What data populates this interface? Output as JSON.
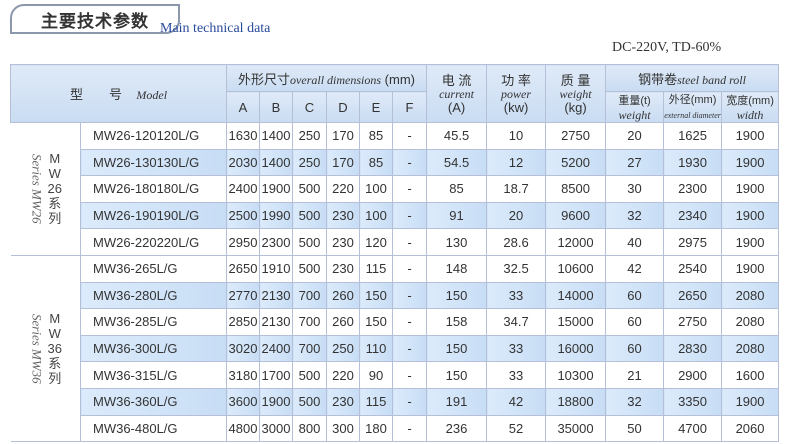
{
  "title": "主要技术参数",
  "subtitle": "Main technical data",
  "conditions": "DC-220V, TD-60%",
  "header": {
    "model_cn": "型　　号",
    "model_en": "Model",
    "dims_cn": "外形尺寸",
    "dims_en": "overall dimensions",
    "dims_unit": "(mm)",
    "dim_cols": [
      "A",
      "B",
      "C",
      "D",
      "E",
      "F"
    ],
    "current_cn": "电 流",
    "current_en": "current",
    "current_unit": "(A)",
    "power_cn": "功 率",
    "power_en": "power",
    "power_unit": "(kw)",
    "weight_cn": "质 量",
    "weight_en": "weight",
    "weight_unit": "(kg)",
    "roll_cn": "钢带卷",
    "roll_en": "steel band roll",
    "roll_weight_cn": "重量(t)",
    "roll_weight_en": "weight",
    "roll_ext_cn": "外径(mm)",
    "roll_ext_en": "external diameter",
    "roll_width_cn": "宽度(mm)",
    "roll_width_en": "width"
  },
  "series": [
    {
      "label_en": "Series MW26",
      "label_cn": [
        "M",
        "W",
        "26",
        "系",
        "列"
      ],
      "rows": [
        [
          "MW26-120120L/G",
          "1630",
          "1400",
          "250",
          "170",
          "85",
          "-",
          "45.5",
          "10",
          "2750",
          "20",
          "1625",
          "1900"
        ],
        [
          "MW26-130130L/G",
          "2030",
          "1400",
          "250",
          "170",
          "85",
          "-",
          "54.5",
          "12",
          "5200",
          "27",
          "1930",
          "1900"
        ],
        [
          "MW26-180180L/G",
          "2400",
          "1900",
          "500",
          "220",
          "100",
          "-",
          "85",
          "18.7",
          "8500",
          "30",
          "2300",
          "1900"
        ],
        [
          "MW26-190190L/G",
          "2500",
          "1990",
          "500",
          "230",
          "100",
          "-",
          "91",
          "20",
          "9600",
          "32",
          "2340",
          "1900"
        ],
        [
          "MW26-220220L/G",
          "2950",
          "2300",
          "500",
          "230",
          "120",
          "-",
          "130",
          "28.6",
          "12000",
          "40",
          "2975",
          "1900"
        ]
      ]
    },
    {
      "label_en": "Series MW36",
      "label_cn": [
        "M",
        "W",
        "36",
        "系",
        "列"
      ],
      "rows": [
        [
          "MW36-265L/G",
          "2650",
          "1910",
          "500",
          "230",
          "115",
          "-",
          "148",
          "32.5",
          "10600",
          "42",
          "2540",
          "1900"
        ],
        [
          "MW36-280L/G",
          "2770",
          "2130",
          "700",
          "260",
          "150",
          "-",
          "150",
          "33",
          "14000",
          "60",
          "2650",
          "2080"
        ],
        [
          "MW36-285L/G",
          "2850",
          "2130",
          "700",
          "260",
          "150",
          "-",
          "158",
          "34.7",
          "15000",
          "60",
          "2750",
          "2080"
        ],
        [
          "MW36-300L/G",
          "3020",
          "2400",
          "700",
          "250",
          "110",
          "-",
          "150",
          "33",
          "16000",
          "60",
          "2830",
          "2080"
        ],
        [
          "MW36-315L/G",
          "3180",
          "1700",
          "500",
          "220",
          "90",
          "-",
          "150",
          "33",
          "10300",
          "21",
          "2900",
          "1600"
        ],
        [
          "MW36-360L/G",
          "3600",
          "1900",
          "500",
          "230",
          "115",
          "-",
          "191",
          "42",
          "18800",
          "32",
          "3350",
          "1900"
        ],
        [
          "MW36-480L/G",
          "4800",
          "3000",
          "800",
          "300",
          "180",
          "-",
          "236",
          "52",
          "35000",
          "50",
          "4700",
          "2060"
        ]
      ]
    }
  ]
}
